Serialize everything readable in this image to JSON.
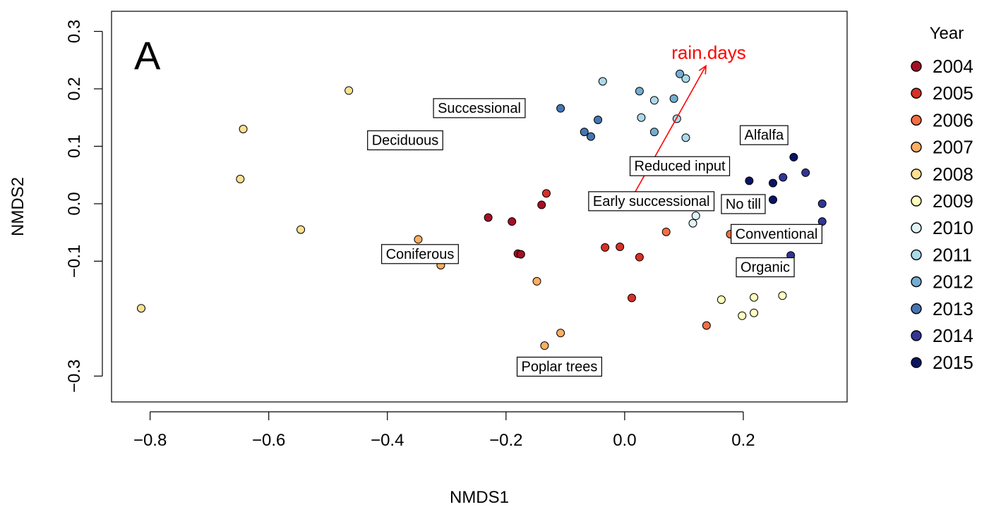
{
  "chart_data": {
    "type": "scatter",
    "panel_label": "A",
    "xlabel": "NMDS1",
    "ylabel": "NMDS2",
    "xlim": [
      -0.865,
      0.375
    ],
    "ylim": [
      -0.345,
      0.335
    ],
    "x_ticks": [
      -0.8,
      -0.6,
      -0.4,
      -0.2,
      0.0,
      0.2
    ],
    "x_tick_labels": [
      "−0.8",
      "−0.6",
      "−0.4",
      "−0.2",
      "0.0",
      "0.2"
    ],
    "y_ticks": [
      -0.3,
      -0.1,
      0.0,
      0.1,
      0.2,
      0.3
    ],
    "y_tick_labels": [
      "−0.3",
      "−0.1",
      "0.0",
      "0.1",
      "0.2",
      "0.3"
    ],
    "grid": false,
    "legend": {
      "title": "Year",
      "placement": "right",
      "entries": [
        {
          "label": "2004",
          "color": "#a50f26"
        },
        {
          "label": "2005",
          "color": "#d73027"
        },
        {
          "label": "2006",
          "color": "#f46d43"
        },
        {
          "label": "2007",
          "color": "#fdae61"
        },
        {
          "label": "2008",
          "color": "#fee090"
        },
        {
          "label": "2009",
          "color": "#ffffbf"
        },
        {
          "label": "2010",
          "color": "#e0f3f8"
        },
        {
          "label": "2011",
          "color": "#abd9e9"
        },
        {
          "label": "2012",
          "color": "#74add1"
        },
        {
          "label": "2013",
          "color": "#4575b4"
        },
        {
          "label": "2014",
          "color": "#313695"
        },
        {
          "label": "2015",
          "color": "#0a1466"
        }
      ]
    },
    "series": [
      {
        "year": "2004",
        "color": "#a50f26",
        "points": [
          [
            -0.23,
            -0.024
          ],
          [
            -0.19,
            -0.031
          ],
          [
            -0.14,
            -0.002
          ],
          [
            -0.18,
            -0.087
          ],
          [
            -0.175,
            -0.088
          ]
        ]
      },
      {
        "year": "2005",
        "color": "#d73027",
        "points": [
          [
            -0.132,
            0.018
          ],
          [
            -0.033,
            -0.076
          ],
          [
            -0.008,
            -0.075
          ],
          [
            0.025,
            -0.093
          ],
          [
            0.012,
            -0.164
          ]
        ]
      },
      {
        "year": "2006",
        "color": "#f46d43",
        "points": [
          [
            0.07,
            -0.049
          ],
          [
            0.178,
            -0.053
          ],
          [
            0.138,
            -0.212
          ]
        ]
      },
      {
        "year": "2007",
        "color": "#fdae61",
        "points": [
          [
            -0.348,
            -0.062
          ],
          [
            -0.31,
            -0.107
          ],
          [
            -0.148,
            -0.135
          ],
          [
            -0.108,
            -0.225
          ],
          [
            -0.135,
            -0.247
          ]
        ]
      },
      {
        "year": "2008",
        "color": "#fee090",
        "points": [
          [
            -0.465,
            0.197
          ],
          [
            -0.643,
            0.13
          ],
          [
            -0.648,
            0.043
          ],
          [
            -0.546,
            -0.045
          ],
          [
            -0.815,
            -0.182
          ]
        ]
      },
      {
        "year": "2009",
        "color": "#ffffbf",
        "points": [
          [
            0.163,
            -0.167
          ],
          [
            0.218,
            -0.163
          ],
          [
            0.266,
            -0.16
          ],
          [
            0.198,
            -0.195
          ],
          [
            0.218,
            -0.19
          ]
        ]
      },
      {
        "year": "2010",
        "color": "#e0f3f8",
        "points": [
          [
            0.12,
            -0.021
          ],
          [
            0.115,
            -0.034
          ]
        ]
      },
      {
        "year": "2011",
        "color": "#abd9e9",
        "points": [
          [
            -0.037,
            0.213
          ],
          [
            0.103,
            0.218
          ],
          [
            0.05,
            0.18
          ],
          [
            0.028,
            0.15
          ],
          [
            0.088,
            0.148
          ],
          [
            0.103,
            0.115
          ]
        ]
      },
      {
        "year": "2012",
        "color": "#74add1",
        "points": [
          [
            0.093,
            0.226
          ],
          [
            0.025,
            0.196
          ],
          [
            0.083,
            0.183
          ],
          [
            0.05,
            0.125
          ]
        ]
      },
      {
        "year": "2013",
        "color": "#4575b4",
        "points": [
          [
            -0.108,
            0.166
          ],
          [
            -0.045,
            0.146
          ],
          [
            -0.068,
            0.125
          ],
          [
            -0.057,
            0.117
          ]
        ]
      },
      {
        "year": "2014",
        "color": "#313695",
        "points": [
          [
            0.267,
            0.046
          ],
          [
            0.305,
            0.054
          ],
          [
            0.333,
            0.0
          ],
          [
            0.333,
            -0.031
          ],
          [
            0.28,
            -0.09
          ]
        ]
      },
      {
        "year": "2015",
        "color": "#0a1466",
        "points": [
          [
            0.285,
            0.081
          ],
          [
            0.21,
            0.04
          ],
          [
            0.25,
            0.036
          ],
          [
            0.25,
            0.007
          ]
        ]
      }
    ],
    "site_labels": [
      {
        "text": "Successional",
        "x": -0.245,
        "y": 0.167
      },
      {
        "text": "Deciduous",
        "x": -0.37,
        "y": 0.111
      },
      {
        "text": "Alfalfa",
        "x": 0.235,
        "y": 0.12
      },
      {
        "text": "Reduced input",
        "x": 0.093,
        "y": 0.066
      },
      {
        "text": "Early successional",
        "x": 0.045,
        "y": 0.005
      },
      {
        "text": "No till",
        "x": 0.2,
        "y": 0.0
      },
      {
        "text": "Conventional",
        "x": 0.256,
        "y": -0.052
      },
      {
        "text": "Coniferous",
        "x": -0.345,
        "y": -0.087
      },
      {
        "text": "Organic",
        "x": 0.237,
        "y": -0.11
      },
      {
        "text": "Poplar trees",
        "x": -0.11,
        "y": -0.283
      }
    ],
    "vector": {
      "label": "rain.days",
      "color": "#ff0000",
      "from": [
        0.012,
        0.01
      ],
      "to": [
        0.137,
        0.24
      ]
    }
  }
}
